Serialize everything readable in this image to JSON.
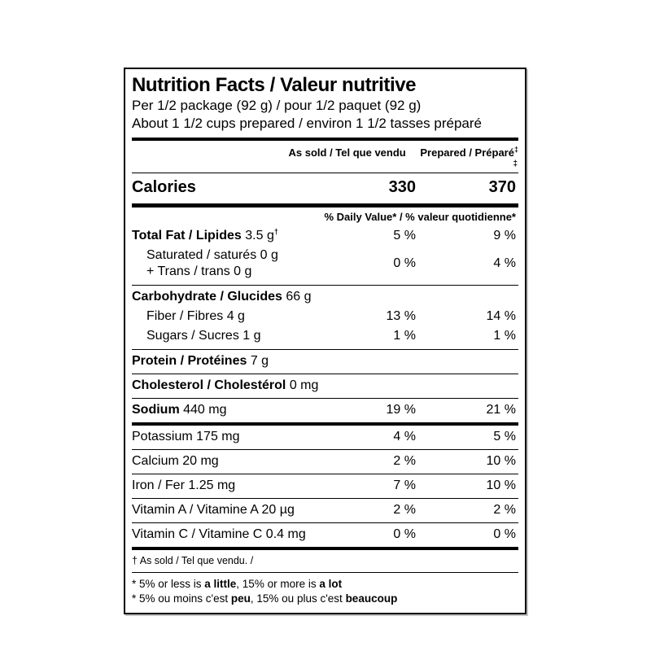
{
  "page": {
    "background": "#ffffff",
    "text_color": "#000000"
  },
  "label": {
    "title": "Nutrition Facts / Valeur nutritive",
    "serving_line1": "Per 1/2 package (92 g) / pour 1/2 paquet (92 g)",
    "serving_line2": "About 1 1/2 cups prepared / environ 1 1/2 tasses préparé",
    "column_headers": {
      "as_sold": "As sold / Tel que vendu",
      "prepared": "Prepared / Préparé",
      "prepared_mark": "‡",
      "wrapped_mark": "‡"
    },
    "calories": {
      "label": "Calories",
      "as_sold": "330",
      "prepared": "370"
    },
    "daily_value_header": "% Daily Value* / % valeur quotidienne*",
    "rows": {
      "total_fat": {
        "bold": "Total Fat / Lipides",
        "rest": " 3.5 g",
        "sup": "†",
        "as_sold": "5 %",
        "prepared": "9 %"
      },
      "sat_trans": {
        "line1": "Saturated / saturés 0 g",
        "line2": "+ Trans / trans 0 g",
        "as_sold": "0 %",
        "prepared": "4 %"
      },
      "carbohydrate": {
        "bold": "Carbohydrate / Glucides",
        "rest": " 66 g"
      },
      "fiber": {
        "text": "Fiber / Fibres 4 g",
        "as_sold": "13 %",
        "prepared": "14 %"
      },
      "sugars": {
        "text": "Sugars / Sucres 1 g",
        "as_sold": "1 %",
        "prepared": "1 %"
      },
      "protein": {
        "bold": "Protein / Protéines",
        "rest": " 7 g"
      },
      "cholesterol": {
        "bold": "Cholesterol / Cholestérol",
        "rest": " 0 mg"
      },
      "sodium": {
        "bold": "Sodium",
        "rest": " 440 mg",
        "as_sold": "19 %",
        "prepared": "21 %"
      },
      "potassium": {
        "text": "Potassium 175 mg",
        "as_sold": "4 %",
        "prepared": "5 %"
      },
      "calcium": {
        "text": "Calcium 20 mg",
        "as_sold": "2 %",
        "prepared": "10 %"
      },
      "iron": {
        "text": "Iron / Fer 1.25 mg",
        "as_sold": "7 %",
        "prepared": "10 %"
      },
      "vitamin_a": {
        "text": "Vitamin A / Vitamine A 20 µg",
        "as_sold": "2 %",
        "prepared": "2 %"
      },
      "vitamin_c": {
        "text": "Vitamin C / Vitamine C 0.4 mg",
        "as_sold": "0 %",
        "prepared": "0 %"
      }
    },
    "footnotes": {
      "as_sold_note": "† As sold / Tel que vendu. /",
      "en_pre": "* 5% or less is ",
      "en_bold1": "a little",
      "en_mid": ", 15% or more is ",
      "en_bold2": "a lot",
      "fr_pre": "* 5% ou moins c'est ",
      "fr_bold1": "peu",
      "fr_mid": ", 15% ou plus c'est ",
      "fr_bold2": "beaucoup"
    }
  }
}
